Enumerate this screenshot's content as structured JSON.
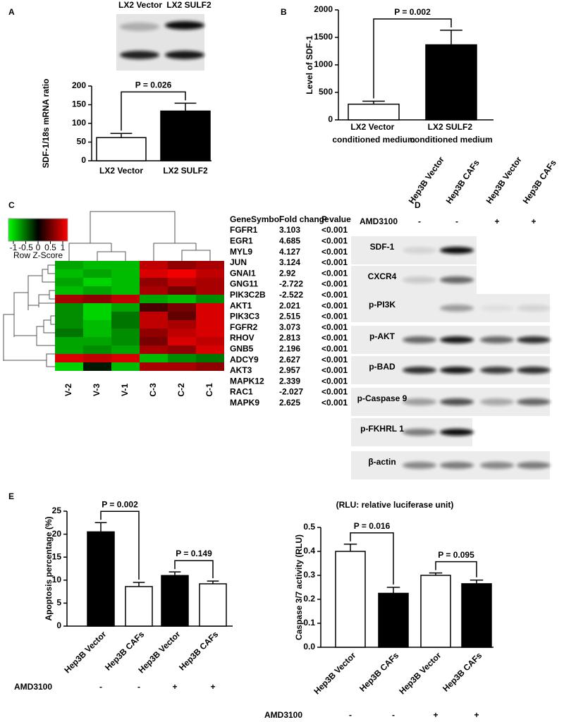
{
  "panel_labels": [
    "A",
    "B",
    "C",
    "D",
    "E"
  ],
  "chart_data": [
    {
      "type": "bar",
      "blot_labels": [
        "LX2 Vector",
        "LX2 SULF2"
      ],
      "ylabel": "SDF-1/18s mRNA ratio",
      "categories": [
        "LX2 Vector",
        "LX2 SULF2"
      ],
      "values": [
        62,
        133
      ],
      "errors": [
        11,
        21
      ],
      "colors": [
        "#ffffff",
        "#000000"
      ],
      "ylim": [
        0,
        200
      ],
      "yticks": [
        0,
        50,
        100,
        150,
        200
      ],
      "annotations": [
        "P = 0.026"
      ]
    },
    {
      "type": "bar",
      "ylabel": "Level of SDF-1",
      "categories": [
        "LX2 Vector conditioned medium",
        "LX2 SULF2 conditioned medium"
      ],
      "values": [
        285,
        1365
      ],
      "errors": [
        55,
        265
      ],
      "colors": [
        "#ffffff",
        "#000000"
      ],
      "ylim": [
        0,
        2000
      ],
      "yticks": [
        0,
        500,
        1000,
        1500,
        2000
      ],
      "annotations": [
        "P = 0.002"
      ]
    },
    {
      "type": "bar",
      "ylabel": "Apoptosis percentage (%)",
      "categories": [
        "Hep3B Vector",
        "Hep3B CAFs",
        "Hep3B Vector",
        "Hep3B CAFs"
      ],
      "values": [
        20.5,
        8.6,
        11.0,
        9.2
      ],
      "errors": [
        2.0,
        0.9,
        0.8,
        0.6
      ],
      "colors": [
        "#000000",
        "#ffffff",
        "#000000",
        "#ffffff"
      ],
      "ylim": [
        0,
        25
      ],
      "yticks": [
        0,
        5,
        10,
        15,
        20,
        25
      ],
      "annotations": [
        "P = 0.002",
        "P = 0.149"
      ],
      "treatment": {
        "label": "AMD3100",
        "signs": [
          "-",
          "-",
          "+",
          "+"
        ]
      }
    },
    {
      "type": "bar",
      "title": "(RLU: relative luciferase unit)",
      "ylabel": "Caspase 3/7 activity (RLU)",
      "categories": [
        "Hep3B Vector",
        "Hep3B CAFs",
        "Hep3B Vector",
        "Hep3B CAFs"
      ],
      "values": [
        0.4,
        0.225,
        0.3,
        0.265
      ],
      "errors": [
        0.03,
        0.025,
        0.01,
        0.015
      ],
      "colors": [
        "#ffffff",
        "#000000",
        "#ffffff",
        "#000000"
      ],
      "ylim": [
        0,
        0.5
      ],
      "yticks": [
        {
          "value": 0,
          "label": "0.0"
        },
        0.1,
        0.2,
        0.3,
        0.4,
        0.5
      ],
      "annotations": [
        "P = 0.016",
        "P = 0.095"
      ],
      "treatment": {
        "label": "AMD3100",
        "signs": [
          "-",
          "-",
          "+",
          "+"
        ]
      }
    }
  ],
  "heatmap": {
    "columns": [
      "V-2",
      "V-3",
      "V-1",
      "C-3",
      "C-2",
      "C-1"
    ],
    "key_label": "Row Z-Score",
    "key_ticks": [
      -1,
      -0.5,
      0,
      0.5,
      1
    ],
    "values": [
      [
        -0.7,
        -0.8,
        -0.8,
        0.8,
        0.6,
        0.7
      ],
      [
        -0.8,
        -0.7,
        -0.8,
        0.9,
        1,
        0.8
      ],
      [
        -0.7,
        -0.9,
        -0.8,
        0.6,
        0.8,
        0.7
      ],
      [
        -0.8,
        -0.7,
        -0.8,
        0.7,
        0.5,
        0.7
      ],
      [
        0.7,
        0.6,
        0.8,
        -0.7,
        -0.8,
        -0.6
      ],
      [
        -0.6,
        -0.9,
        -0.7,
        0.3,
        0.5,
        0.9
      ],
      [
        -0.6,
        -0.9,
        -0.5,
        0.8,
        0.4,
        0.9
      ],
      [
        -0.6,
        -0.8,
        -0.5,
        0.8,
        0.7,
        0.9
      ],
      [
        -0.5,
        -0.8,
        -0.6,
        0.6,
        0.8,
        0.9
      ],
      [
        -0.7,
        -0.7,
        -0.6,
        0.5,
        0.9,
        0.8
      ],
      [
        -0.7,
        -0.6,
        -0.7,
        0.7,
        0.6,
        0.9
      ],
      [
        0.9,
        0.8,
        0.9,
        -0.8,
        -0.6,
        -0.5
      ],
      [
        -0.9,
        -0.1,
        -0.8,
        0.7,
        0.7,
        0.6
      ]
    ]
  },
  "gene_table": {
    "header": [
      "GeneSymbol",
      "Fold change",
      "P value"
    ],
    "rows": [
      [
        "FGFR1",
        3.103,
        "<0.001"
      ],
      [
        "EGR1",
        4.685,
        "<0.001"
      ],
      [
        "MYL9",
        4.127,
        "<0.001"
      ],
      [
        "JUN",
        3.124,
        "<0.001"
      ],
      [
        "GNAI1",
        2.92,
        "<0.001"
      ],
      [
        "GNG11",
        -2.722,
        "<0.001"
      ],
      [
        "PIK3C2B",
        -2.522,
        "<0.001"
      ],
      [
        "AKT1",
        2.021,
        "<0.001"
      ],
      [
        "PIK3C3",
        2.515,
        "<0.001"
      ],
      [
        "FGFR2",
        3.073,
        "<0.001"
      ],
      [
        "RHOV",
        2.813,
        "<0.001"
      ],
      [
        "GNB5",
        2.196,
        "<0.001"
      ],
      [
        "ADCY9",
        2.627,
        "<0.001"
      ],
      [
        "AKT3",
        2.957,
        "<0.001"
      ],
      [
        "MAPK12",
        2.339,
        "<0.001"
      ],
      [
        "RAC1",
        -2.027,
        "<0.001"
      ],
      [
        "MAPK9",
        2.625,
        "<0.001"
      ]
    ]
  },
  "blot": {
    "lanes": [
      "Hep3B Vector",
      "Hep3B CAFs",
      "Hep3B Vector",
      "Hep3B CAFs"
    ],
    "treatment": {
      "label": "AMD3100",
      "signs": [
        "-",
        "-",
        "+",
        "+"
      ]
    },
    "rows": [
      "SDF-1",
      "CXCR4",
      "p-PI3K",
      "p-AKT",
      "p-BAD",
      "p-Caspase 9",
      "p-FKHRL 1",
      "β-actin"
    ]
  }
}
